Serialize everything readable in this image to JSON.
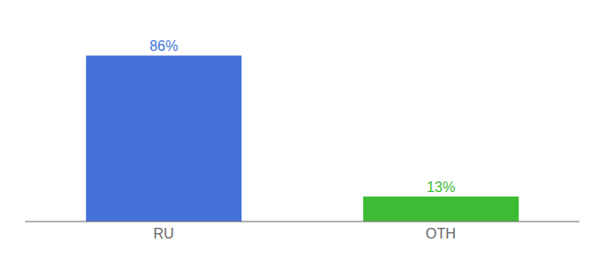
{
  "chart_data": {
    "type": "bar",
    "categories": [
      "RU",
      "OTH"
    ],
    "values": [
      86,
      13
    ],
    "value_labels": [
      "86%",
      "13%"
    ],
    "colors": [
      "#4472d9",
      "#3dbb35"
    ],
    "ylim": [
      0,
      100
    ],
    "data_labels": true,
    "tick_labels": "x"
  }
}
